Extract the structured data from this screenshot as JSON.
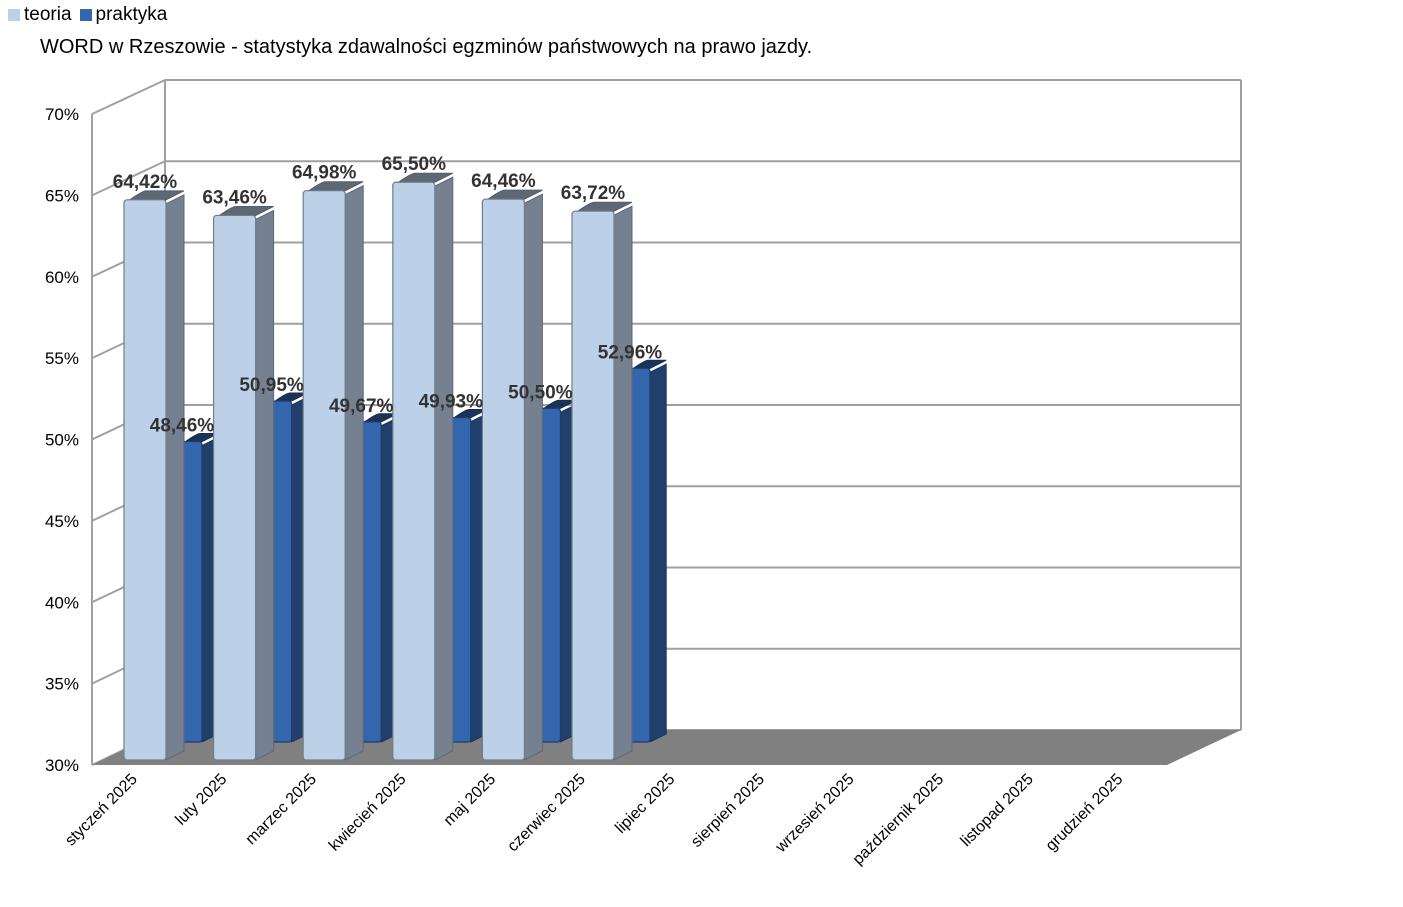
{
  "colors": {
    "teoria": "#bcd0e8",
    "praktyka": "#3466ad",
    "grid": "#a0a0a0",
    "floor": "#808080",
    "label": "#333333"
  },
  "chart_data": {
    "type": "bar",
    "title": "WORD w Rzeszowie - statystyka zdawalności egzminów państwowych na prawo jazdy.",
    "legend_position": "top-left",
    "grid": true,
    "three_d": true,
    "ylim": [
      30,
      70
    ],
    "yticks": [
      "30%",
      "35%",
      "40%",
      "45%",
      "50%",
      "55%",
      "60%",
      "65%",
      "70%"
    ],
    "categories": [
      "styczeń 2025",
      "luty 2025",
      "marzec 2025",
      "kwiecień 2025",
      "maj 2025",
      "czerwiec 2025",
      "lipiec 2025",
      "sierpień 2025",
      "wrzesień 2025",
      "październik 2025",
      "listopad 2025",
      "grudzień 2025"
    ],
    "series": [
      {
        "name": "teoria",
        "values": [
          64.42,
          63.46,
          64.98,
          65.5,
          64.46,
          63.72,
          null,
          null,
          null,
          null,
          null,
          null
        ],
        "labels": [
          "64,42%",
          "63,46%",
          "64,98%",
          "65,50%",
          "64,46%",
          "63,72%",
          "",
          "",
          "",
          "",
          "",
          ""
        ]
      },
      {
        "name": "praktyka",
        "values": [
          48.46,
          50.95,
          49.67,
          49.93,
          50.5,
          52.96,
          null,
          null,
          null,
          null,
          null,
          null
        ],
        "labels": [
          "48,46%",
          "50,95%",
          "49,67%",
          "49,93%",
          "50,50%",
          "52,96%",
          "",
          "",
          "",
          "",
          "",
          ""
        ]
      }
    ]
  }
}
